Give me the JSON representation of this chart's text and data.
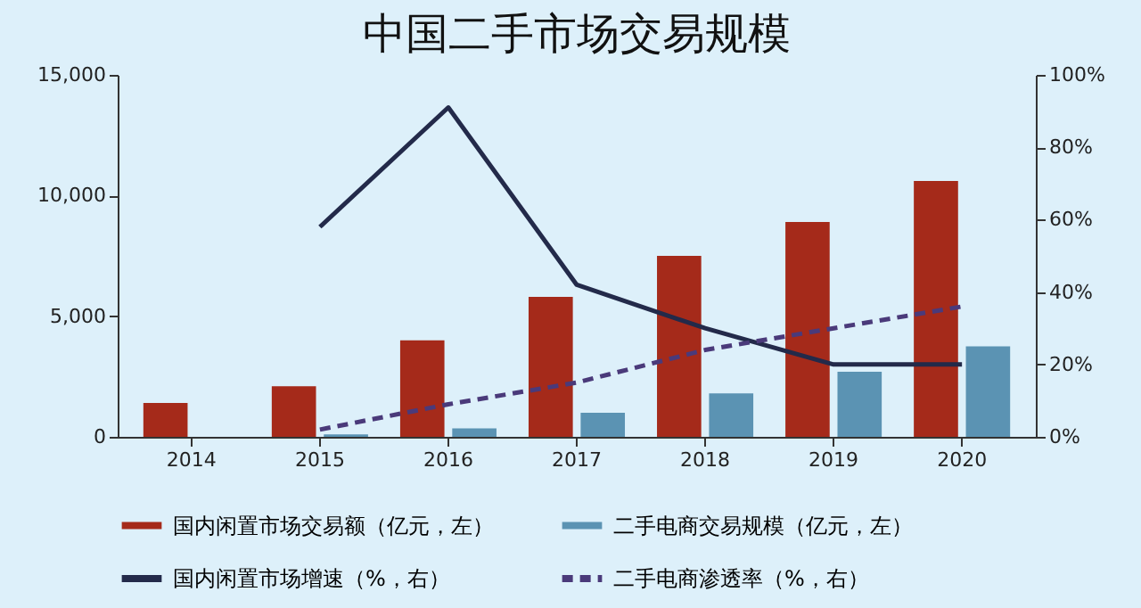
{
  "chart_data": {
    "type": "bar",
    "title": "中国二手市场交易规模",
    "categories": [
      "2014",
      "2015",
      "2016",
      "2017",
      "2018",
      "2019",
      "2020"
    ],
    "series": [
      {
        "name": "国内闲置市场交易额（亿元，左）",
        "color": "#a52a1a",
        "values": [
          1400,
          2100,
          4000,
          5800,
          7500,
          8900,
          10600
        ]
      },
      {
        "name": "二手电商交易规模（亿元，左）",
        "color": "#5b93b3",
        "values": [
          null,
          100,
          350,
          1000,
          1800,
          2700,
          3750
        ]
      },
      {
        "name": "国内闲置市场增速（%，右）",
        "type": "line",
        "axis": "y2",
        "line_style": "solid",
        "color": "#232a4a",
        "values": [
          null,
          58,
          91,
          42,
          30,
          20,
          20
        ]
      },
      {
        "name": "二手电商渗透率（%，右）",
        "type": "line",
        "axis": "y2",
        "line_style": "dashed",
        "color": "#4a3a7a",
        "values": [
          null,
          2,
          9,
          15,
          24,
          30,
          36
        ]
      }
    ],
    "ylim": [
      0,
      15000
    ],
    "yticks": [
      {
        "value": 0,
        "label": "0"
      },
      {
        "value": 5000,
        "label": "5,000"
      },
      {
        "value": 10000,
        "label": "10,000"
      },
      {
        "value": 15000,
        "label": "15,000"
      }
    ],
    "y2lim": [
      0,
      100
    ],
    "y2ticks": [
      {
        "value": 0,
        "label": "0%"
      },
      {
        "value": 20,
        "label": "20%"
      },
      {
        "value": 40,
        "label": "40%"
      },
      {
        "value": 60,
        "label": "60%"
      },
      {
        "value": 80,
        "label": "80%"
      },
      {
        "value": 100,
        "label": "100%"
      }
    ],
    "grid": false,
    "legend": "bottom"
  }
}
